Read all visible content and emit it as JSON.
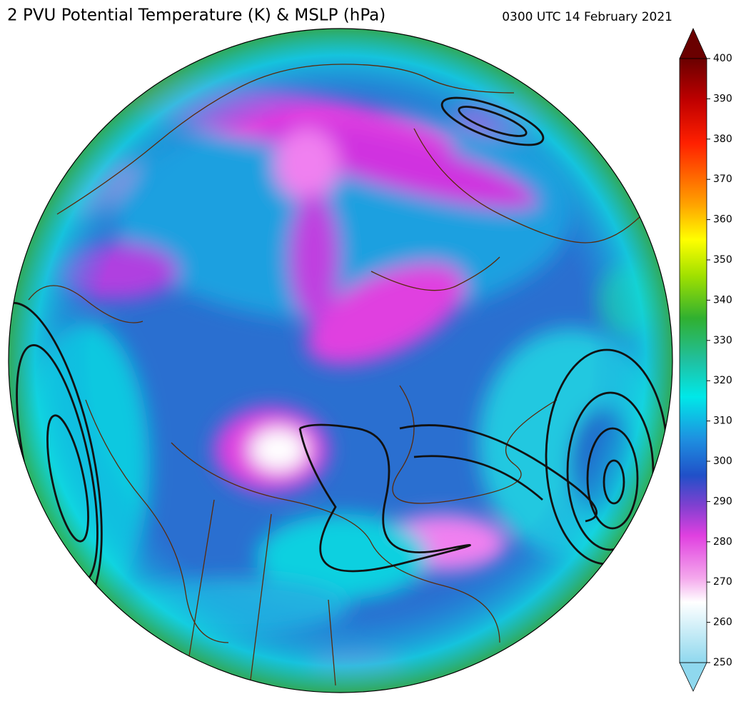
{
  "header": {
    "title": "2 PVU Potential Temperature (K) & MSLP (hPa)",
    "timestamp": "0300 UTC 14 February 2021"
  },
  "colorbar": {
    "range": [
      250,
      400
    ],
    "ticks": [
      250,
      260,
      270,
      280,
      290,
      300,
      310,
      320,
      330,
      340,
      350,
      360,
      370,
      380,
      390,
      400
    ]
  }
}
